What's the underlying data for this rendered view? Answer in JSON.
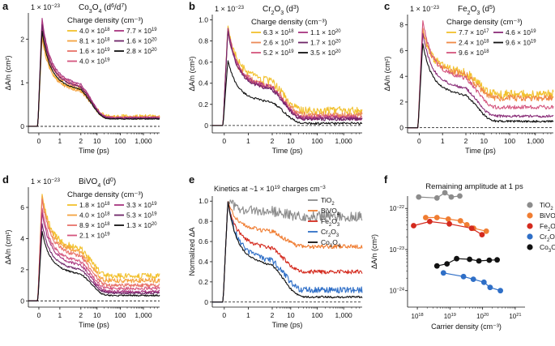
{
  "chart_data": [
    {
      "panel": "a",
      "type": "line",
      "exponent": "1 × 10",
      "exponent_power": "−23",
      "material": "Co",
      "material_sub1": "3",
      "material_mid": "O",
      "material_sub2": "4",
      "config": "(d",
      "config_sup1": "6",
      "config_sep": "/d",
      "config_sup2": "7",
      "config_end": ")",
      "xlabel": "Time (ps)",
      "ylabel": "ΔA/n (cm²)",
      "ylim": [
        -0.15,
        2.6
      ],
      "yticks": [
        "0",
        "1",
        "2"
      ],
      "ytick_values": [
        0,
        1,
        2
      ],
      "xticks": [
        "0",
        "1",
        "2",
        "10",
        "100",
        "1,000"
      ],
      "legend_title": "Charge density (cm⁻³)",
      "legend": [
        {
          "label": "4.0 × 10",
          "exp": "18",
          "color": "#f2c12e"
        },
        {
          "label": "8.1 × 10",
          "exp": "18",
          "color": "#f4a340"
        },
        {
          "label": "1.6 × 10",
          "exp": "19",
          "color": "#e8736a"
        },
        {
          "label": "4.0 × 10",
          "exp": "19",
          "color": "#d4557e"
        },
        {
          "label": "7.7 × 10",
          "exp": "19",
          "color": "#a8357f"
        },
        {
          "label": "1.6 × 10",
          "exp": "20",
          "color": "#6e2568"
        },
        {
          "label": "2.8 × 10",
          "exp": "20",
          "color": "#111111"
        }
      ],
      "series": [
        {
          "name": "4.0e18",
          "peak": 2.1,
          "plateau": 0.22,
          "noise": 0.05
        },
        {
          "name": "8.1e18",
          "peak": 2.05,
          "plateau": 0.2,
          "noise": 0.04
        },
        {
          "name": "1.6e19",
          "peak": 2.3,
          "plateau": 0.2,
          "noise": 0.03
        },
        {
          "name": "4.0e19",
          "peak": 2.4,
          "plateau": 0.2,
          "noise": 0.02
        },
        {
          "name": "7.7e19",
          "peak": 2.5,
          "plateau": 0.2,
          "noise": 0.02
        },
        {
          "name": "1.6e20",
          "peak": 2.35,
          "plateau": 0.18,
          "noise": 0.015
        },
        {
          "name": "2.8e20",
          "peak": 2.2,
          "plateau": 0.17,
          "noise": 0.01
        }
      ]
    },
    {
      "panel": "b",
      "type": "line",
      "exponent": "1 × 10",
      "exponent_power": "−23",
      "material": "Cr",
      "material_sub1": "2",
      "material_mid": "O",
      "material_sub2": "3",
      "config": "(d",
      "config_sup1": "3",
      "config_end": ")",
      "xlabel": "Time (ps)",
      "ylabel": "ΔA/n (cm²)",
      "ylim": [
        -0.07,
        1.05
      ],
      "yticks": [
        "0",
        "0.2",
        "0.4",
        "0.6",
        "0.8",
        "1.0"
      ],
      "ytick_values": [
        0,
        0.2,
        0.4,
        0.6,
        0.8,
        1.0
      ],
      "xticks": [
        "0",
        "1",
        "2",
        "10",
        "100",
        "1,000"
      ],
      "legend_title": "Charge density (cm⁻³)",
      "legend": [
        {
          "label": "6.3 × 10",
          "exp": "18",
          "color": "#f2c12e"
        },
        {
          "label": "2.6 × 10",
          "exp": "19",
          "color": "#ec8a58"
        },
        {
          "label": "5.2 × 10",
          "exp": "19",
          "color": "#d4557e"
        },
        {
          "label": "1.1 × 10",
          "exp": "20",
          "color": "#a8357f"
        },
        {
          "label": "1.7 × 10",
          "exp": "20",
          "color": "#6e2568"
        },
        {
          "label": "3.5 × 10",
          "exp": "20",
          "color": "#111111"
        }
      ],
      "series": [
        {
          "name": "6.3e18",
          "peak": 0.95,
          "plateau": 0.14,
          "noise": 0.04
        },
        {
          "name": "2.6e19",
          "peak": 0.9,
          "plateau": 0.1,
          "noise": 0.03
        },
        {
          "name": "5.2e19",
          "peak": 0.92,
          "plateau": 0.08,
          "noise": 0.025
        },
        {
          "name": "1.1e20",
          "peak": 0.93,
          "plateau": 0.07,
          "noise": 0.02
        },
        {
          "name": "1.7e20",
          "peak": 0.9,
          "plateau": 0.06,
          "noise": 0.015
        },
        {
          "name": "3.5e20",
          "peak": 0.62,
          "plateau": 0.02,
          "noise": 0.01
        }
      ]
    },
    {
      "panel": "c",
      "type": "line",
      "exponent": "1 × 10",
      "exponent_power": "−23",
      "material": "Fe",
      "material_sub1": "2",
      "material_mid": "O",
      "material_sub2": "3",
      "config": "(d",
      "config_sup1": "5",
      "config_end": ")",
      "xlabel": "Time (ps)",
      "ylabel": "ΔA/n (cm²)",
      "ylim": [
        -0.4,
        8.8
      ],
      "yticks": [
        "0",
        "2",
        "4",
        "6",
        "8"
      ],
      "ytick_values": [
        0,
        2,
        4,
        6,
        8
      ],
      "xticks": [
        "0",
        "1",
        "2",
        "10",
        "100",
        "1,000"
      ],
      "legend_title": "Charge density (cm⁻³)",
      "legend": [
        {
          "label": "7.7 × 10",
          "exp": "17",
          "color": "#f2c12e"
        },
        {
          "label": "2.4 × 10",
          "exp": "18",
          "color": "#f08a46"
        },
        {
          "label": "9.6 × 10",
          "exp": "18",
          "color": "#d4557e"
        },
        {
          "label": "4.6 × 10",
          "exp": "19",
          "color": "#8a2d78"
        },
        {
          "label": "9.6 × 10",
          "exp": "19",
          "color": "#111111"
        }
      ],
      "series": [
        {
          "name": "7.7e17",
          "peak": 7.6,
          "plateau": 2.6,
          "noise": 0.35
        },
        {
          "name": "2.4e18",
          "peak": 7.8,
          "plateau": 2.3,
          "noise": 0.25
        },
        {
          "name": "9.6e18",
          "peak": 8.4,
          "plateau": 1.6,
          "noise": 0.15
        },
        {
          "name": "4.6e19",
          "peak": 7.4,
          "plateau": 0.9,
          "noise": 0.1
        },
        {
          "name": "9.6e19",
          "peak": 6.6,
          "plateau": 0.5,
          "noise": 0.08
        }
      ]
    },
    {
      "panel": "d",
      "type": "line",
      "exponent": "1 × 10",
      "exponent_power": "−23",
      "material": "BiVO",
      "material_sub1": "4",
      "material_mid": "",
      "material_sub2": "",
      "config": "(d",
      "config_sup1": "0",
      "config_end": ")",
      "xlabel": "Time (ps)",
      "ylabel": "ΔA/n (cm²)",
      "ylim": [
        -0.4,
        7.3
      ],
      "yticks": [
        "0",
        "2",
        "4",
        "6"
      ],
      "ytick_values": [
        0,
        2,
        4,
        6
      ],
      "xticks": [
        "0",
        "1",
        "2",
        "10",
        "100",
        "1,000"
      ],
      "legend_title": "Charge density (cm⁻³)",
      "legend": [
        {
          "label": "1.8 × 10",
          "exp": "18",
          "color": "#f2c12e"
        },
        {
          "label": "4.0 × 10",
          "exp": "18",
          "color": "#f4a340"
        },
        {
          "label": "8.9 × 10",
          "exp": "18",
          "color": "#e8736a"
        },
        {
          "label": "2.1 × 10",
          "exp": "19",
          "color": "#d4557e"
        },
        {
          "label": "3.3 × 10",
          "exp": "19",
          "color": "#a8357f"
        },
        {
          "label": "5.3 × 10",
          "exp": "19",
          "color": "#6e2568"
        },
        {
          "label": "1.3 × 10",
          "exp": "20",
          "color": "#111111"
        }
      ],
      "series": [
        {
          "name": "1.8e18",
          "peak": 6.9,
          "plateau": 1.6,
          "noise": 0.18
        },
        {
          "name": "4.0e18",
          "peak": 6.8,
          "plateau": 1.3,
          "noise": 0.15
        },
        {
          "name": "8.9e18",
          "peak": 6.6,
          "plateau": 1.0,
          "noise": 0.12
        },
        {
          "name": "2.1e19",
          "peak": 6.0,
          "plateau": 0.8,
          "noise": 0.1
        },
        {
          "name": "3.3e19",
          "peak": 5.7,
          "plateau": 0.6,
          "noise": 0.08
        },
        {
          "name": "5.3e19",
          "peak": 5.0,
          "plateau": 0.5,
          "noise": 0.06
        },
        {
          "name": "1.3e20",
          "peak": 4.5,
          "plateau": 0.35,
          "noise": 0.05
        }
      ]
    },
    {
      "panel": "e",
      "type": "line",
      "title_pre": "Kinetics at ~1 × 10",
      "title_sup": "19",
      "title_post": " charges cm",
      "title_sup2": "−3",
      "xlabel": "Time (ps)",
      "ylabel": "Normalized ΔA",
      "ylim": [
        -0.05,
        1.05
      ],
      "yticks": [
        "0",
        "0.2",
        "0.4",
        "0.6",
        "0.8",
        "1.0"
      ],
      "ytick_values": [
        0,
        0.2,
        0.4,
        0.6,
        0.8,
        1.0
      ],
      "xticks": [
        "0",
        "1",
        "2",
        "10",
        "100",
        "1,000"
      ],
      "legend": [
        {
          "label": "TiO",
          "sub": "2",
          "label2": "",
          "sub2": "",
          "color": "#8c8c8c"
        },
        {
          "label": "BiVO",
          "sub": "4",
          "label2": "",
          "sub2": "",
          "color": "#f07d32"
        },
        {
          "label": "Fe",
          "sub": "2",
          "label2": "O",
          "sub2": "3",
          "color": "#d42a1e"
        },
        {
          "label": "Cr",
          "sub": "2",
          "label2": "O",
          "sub2": "3",
          "color": "#2f6fc7"
        },
        {
          "label": "Co",
          "sub": "3",
          "label2": "O",
          "sub2": "4",
          "color": "#111111"
        }
      ],
      "series": [
        {
          "name": "TiO2",
          "peak": 1.0,
          "plateau": 0.85,
          "noise": 0.05
        },
        {
          "name": "BiVO4",
          "peak": 1.0,
          "plateau": 0.55,
          "noise": 0.02
        },
        {
          "name": "Fe2O3",
          "peak": 1.0,
          "plateau": 0.3,
          "noise": 0.02
        },
        {
          "name": "Cr2O3",
          "peak": 1.0,
          "plateau": 0.12,
          "noise": 0.03
        },
        {
          "name": "Co3O4",
          "peak": 1.0,
          "plateau": 0.05,
          "noise": 0.01
        }
      ]
    },
    {
      "panel": "f",
      "type": "scatter",
      "title": "Remaining amplitude at 1 ps",
      "xlabel": "Carrier density (cm⁻³)",
      "ylabel": "ΔA/n (cm²)",
      "xlim_log10": [
        17.7,
        21.3
      ],
      "ylim_log10": [
        -24.4,
        -21.7
      ],
      "xticks": [
        {
          "label": "10",
          "exp": "18"
        },
        {
          "label": "10",
          "exp": "19"
        },
        {
          "label": "10",
          "exp": "20"
        },
        {
          "label": "10",
          "exp": "21"
        }
      ],
      "xtick_values": [
        18,
        19,
        20,
        21
      ],
      "yticks": [
        {
          "label": "10",
          "exp": "−22"
        },
        {
          "label": "10",
          "exp": "−23"
        },
        {
          "label": "10",
          "exp": "−24"
        }
      ],
      "ytick_values": [
        -22,
        -23,
        -24
      ],
      "legend": [
        {
          "label": "TiO",
          "sub": "2",
          "label2": "",
          "sub2": "",
          "color": "#8c8c8c"
        },
        {
          "label": "BiVO",
          "sub": "4",
          "label2": "",
          "sub2": "",
          "color": "#f07d32"
        },
        {
          "label": "Fe",
          "sub": "2",
          "label2": "O",
          "sub2": "3",
          "color": "#d42a1e"
        },
        {
          "label": "Cr",
          "sub": "2",
          "label2": "O",
          "sub2": "3",
          "color": "#2f6fc7"
        },
        {
          "label": "Co",
          "sub": "3",
          "label2": "O",
          "sub2": "4",
          "color": "#111111"
        }
      ],
      "series": [
        {
          "name": "TiO2",
          "x": [
            1.1e+18,
            4e+18,
            7e+18,
            1.1e+19,
            2e+19
          ],
          "y": [
            1.9e-22,
            1.8e-22,
            2.4e-22,
            1.9e-22,
            2e-22
          ]
        },
        {
          "name": "BiVO4",
          "x": [
            1.8e+18,
            4e+18,
            8.9e+18,
            2.1e+19,
            3.3e+19,
            5.3e+19,
            1.3e+20
          ],
          "y": [
            6e-23,
            6e-23,
            5.5e-23,
            5e-23,
            4e-23,
            3.3e-23,
            2.8e-23
          ]
        },
        {
          "name": "Fe2O3",
          "x": [
            7.7e+17,
            2.4e+18,
            9.6e+18,
            4.6e+19,
            9.6e+19
          ],
          "y": [
            3.8e-23,
            4.8e-23,
            4.2e-23,
            3.3e-23,
            2.3e-23
          ]
        },
        {
          "name": "Cr2O3",
          "x": [
            6.3e+18,
            2.6e+19,
            5.2e+19,
            1.1e+20,
            1.7e+20,
            3.5e+20
          ],
          "y": [
            2.7e-24,
            2.2e-24,
            1.9e-24,
            1.6e-24,
            1.2e-24,
            1e-24
          ]
        },
        {
          "name": "Co3O4",
          "x": [
            4e+18,
            8.1e+18,
            1.6e+19,
            4e+19,
            7.7e+19,
            1.6e+20,
            2.8e+20
          ],
          "y": [
            4e-24,
            4.5e-24,
            6e-24,
            5.8e-24,
            5.3e-24,
            5.5e-24,
            5.6e-24
          ]
        }
      ]
    }
  ]
}
